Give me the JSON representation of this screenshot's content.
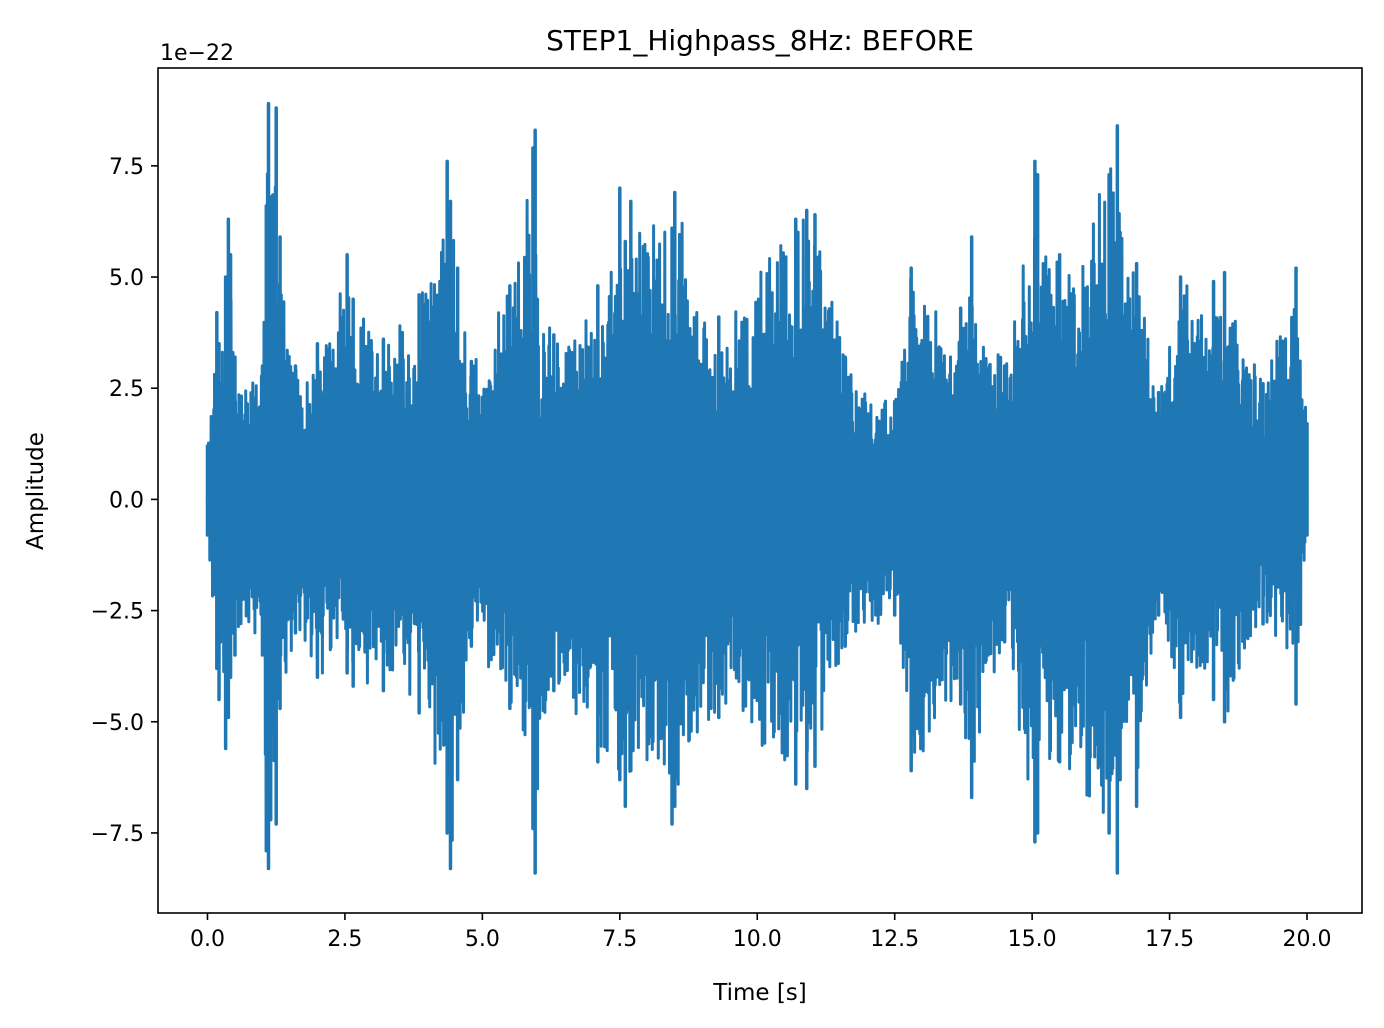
{
  "chart_data": {
    "type": "line",
    "title": "STEP1_Highpass_8Hz: BEFORE",
    "xlabel": "Time [s]",
    "ylabel": "Amplitude",
    "y_offset_text": "1e−22",
    "xlim": [
      -0.9,
      21.0
    ],
    "ylim": [
      -9.3,
      9.7
    ],
    "xticks": [
      0.0,
      2.5,
      5.0,
      7.5,
      10.0,
      12.5,
      15.0,
      17.5,
      20.0
    ],
    "yticks": [
      -7.5,
      -5.0,
      -2.5,
      0.0,
      2.5,
      5.0,
      7.5
    ],
    "xtick_labels": [
      "0.0",
      "2.5",
      "5.0",
      "7.5",
      "10.0",
      "12.5",
      "15.0",
      "17.5",
      "20.0"
    ],
    "ytick_labels": [
      "−7.5",
      "−5.0",
      "−2.5",
      "0.0",
      "2.5",
      "5.0",
      "7.5"
    ],
    "grid": false,
    "series_color": "#1f77b4",
    "series": [
      {
        "x": [
          0.0,
          0.17,
          0.21,
          0.24,
          0.33,
          0.38,
          0.42,
          0.46,
          0.5,
          1.0,
          1.07,
          1.11,
          1.15,
          1.25,
          1.32,
          1.6,
          2.0,
          2.54,
          2.65,
          3.2,
          3.85,
          4.36,
          4.42,
          4.55,
          4.8,
          5.5,
          5.92,
          5.96,
          6.0,
          6.3,
          7.1,
          7.5,
          7.6,
          7.7,
          8.45,
          8.5,
          9.3,
          10.7,
          10.9,
          11.05,
          11.6,
          12.5,
          12.8,
          13.7,
          13.9,
          14.5,
          15.05,
          15.1,
          15.5,
          16.4,
          16.55,
          16.6,
          16.9,
          17.3,
          17.7,
          18.3,
          18.5,
          19.2,
          19.8,
          20.0
        ],
        "envelope_upper": [
          1.2,
          4.2,
          3.5,
          2.6,
          5.0,
          6.3,
          5.5,
          3.3,
          3.2,
          3.0,
          6.6,
          8.9,
          6.8,
          8.8,
          5.9,
          3.0,
          3.5,
          5.5,
          4.5,
          3.6,
          4.6,
          7.6,
          6.7,
          5.2,
          3.1,
          4.8,
          7.9,
          8.3,
          4.5,
          3.7,
          4.8,
          7.0,
          5.8,
          6.7,
          6.1,
          6.9,
          4.1,
          6.3,
          6.5,
          6.4,
          3.2,
          2.2,
          5.2,
          4.3,
          5.9,
          3.0,
          7.6,
          7.3,
          5.5,
          7.3,
          8.4,
          6.0,
          5.3,
          2.4,
          5.0,
          4.9,
          5.1,
          2.6,
          5.2,
          1.7
        ],
        "envelope_lower": [
          -0.8,
          -3.8,
          -4.5,
          -3.2,
          -5.6,
          -4.9,
          -4.0,
          -3.0,
          -3.5,
          -3.5,
          -7.9,
          -8.3,
          -7.2,
          -7.3,
          -4.7,
          -3.0,
          -4.0,
          -3.9,
          -4.2,
          -4.3,
          -4.8,
          -7.5,
          -8.3,
          -6.3,
          -3.3,
          -4.7,
          -7.4,
          -8.4,
          -6.5,
          -4.3,
          -5.9,
          -6.3,
          -6.9,
          -6.1,
          -7.3,
          -6.9,
          -4.9,
          -6.4,
          -6.5,
          -6.0,
          -3.3,
          -2.6,
          -6.1,
          -4.6,
          -6.7,
          -3.2,
          -7.7,
          -7.5,
          -5.9,
          -7.5,
          -8.4,
          -6.3,
          -6.9,
          -2.6,
          -4.9,
          -4.5,
          -5.0,
          -2.8,
          -4.6,
          -0.8
        ]
      }
    ]
  }
}
